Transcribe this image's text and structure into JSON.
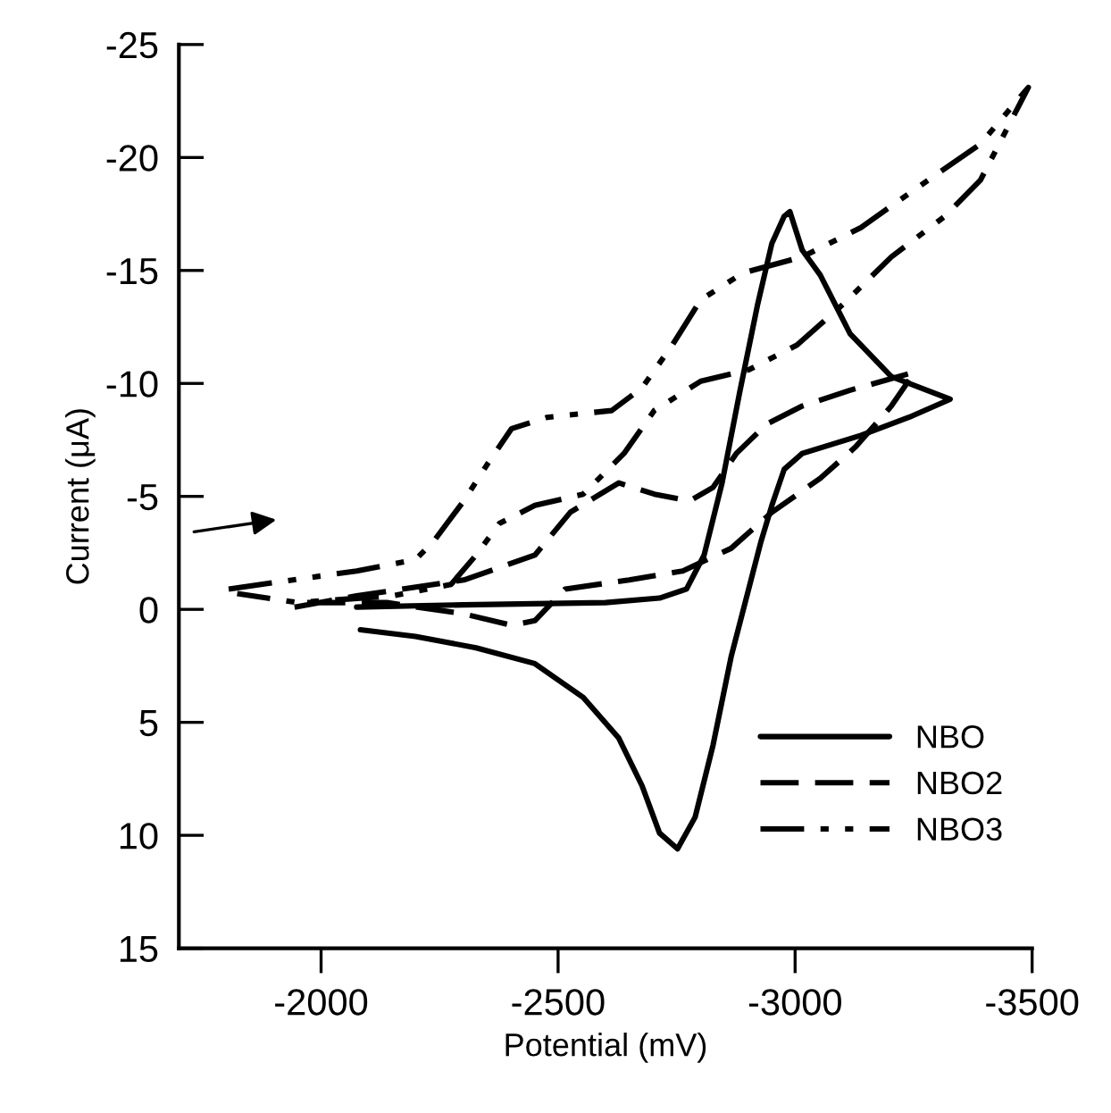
{
  "chart_data": {
    "type": "line",
    "xlabel": "Potential (mV)",
    "ylabel": "Current (μA)",
    "xlim": [
      -1700,
      -3500
    ],
    "xticks": [
      -2000,
      -2500,
      -3000,
      -3500
    ],
    "ylim": [
      15,
      -25
    ],
    "yticks": [
      -25,
      -20,
      -15,
      -10,
      -5,
      0,
      5,
      10,
      15
    ],
    "grid": false,
    "legend": "bottom right",
    "marker": "none",
    "series": [
      {
        "name": "NBO",
        "color": "#000000",
        "line_style": "solid",
        "x": [
          -2075,
          -2300,
          -2600,
          -2714,
          -2771,
          -2808,
          -2846,
          -2883,
          -2921,
          -2951,
          -2977,
          -2989,
          -3015,
          -3053,
          -3116,
          -3203,
          -3327,
          -3240,
          -3139,
          -3015,
          -2977,
          -2951,
          -2928,
          -2902,
          -2865,
          -2827,
          -2789,
          -2752,
          -2714,
          -2677,
          -2628,
          -2553,
          -2451,
          -2327,
          -2199,
          -2083
        ],
        "values": [
          -0.1,
          -0.2,
          -0.3,
          -0.5,
          -0.9,
          -2.4,
          -5.6,
          -9.6,
          -13.5,
          -16.2,
          -17.4,
          -17.6,
          -15.9,
          -14.8,
          -12.2,
          -10.3,
          -9.3,
          -8.5,
          -7.7,
          -6.9,
          -6.2,
          -4.6,
          -3.0,
          -0.9,
          2.1,
          6.0,
          9.2,
          10.6,
          9.9,
          7.8,
          5.7,
          3.9,
          2.4,
          1.7,
          1.2,
          0.9
        ]
      },
      {
        "name": "NBO2",
        "color": "#000000",
        "line_style": "dashed",
        "x": [
          -1944,
          -2075,
          -2301,
          -2451,
          -2526,
          -2628,
          -2703,
          -2778,
          -2827,
          -2876,
          -2940,
          -3015,
          -3116,
          -3252,
          -3203,
          -3128,
          -3053,
          -2951,
          -2865,
          -2763,
          -2650,
          -2515,
          -2451,
          -2402,
          -2301,
          -2139,
          -1951
        ],
        "values": [
          -0.1,
          -0.6,
          -1.3,
          -2.4,
          -4.3,
          -5.6,
          -5.1,
          -4.8,
          -5.4,
          -6.9,
          -8.2,
          -9.0,
          -9.7,
          -10.5,
          -9.0,
          -7.2,
          -5.8,
          -4.3,
          -2.7,
          -1.7,
          -1.3,
          -0.9,
          0.5,
          0.7,
          0.2,
          -0.3,
          -0.3
        ]
      },
      {
        "name": "NBO3",
        "color": "#000000",
        "line_style": "dashdotdot",
        "x": [
          -1805,
          -2075,
          -2199,
          -2237,
          -2301,
          -2350,
          -2402,
          -2477,
          -2613,
          -2677,
          -2741,
          -2801,
          -2891,
          -3015,
          -3139,
          -3267,
          -3391,
          -3492,
          -3455,
          -3391,
          -3316,
          -3203,
          -3101,
          -3004,
          -2902,
          -2801,
          -2703,
          -2639,
          -2553,
          -2451,
          -2376,
          -2327,
          -2274,
          -2150,
          -1951,
          -1823
        ],
        "values": [
          -0.9,
          -1.7,
          -2.2,
          -3.0,
          -4.8,
          -6.4,
          -8.0,
          -8.5,
          -8.8,
          -9.8,
          -11.7,
          -13.7,
          -14.9,
          -15.6,
          -16.9,
          -18.8,
          -20.6,
          -23.1,
          -21.6,
          -19.0,
          -17.4,
          -15.6,
          -13.5,
          -11.7,
          -10.6,
          -10.1,
          -8.8,
          -6.9,
          -5.1,
          -4.6,
          -3.8,
          -2.4,
          -1.1,
          -0.6,
          -0.3,
          -0.7
        ]
      }
    ]
  }
}
